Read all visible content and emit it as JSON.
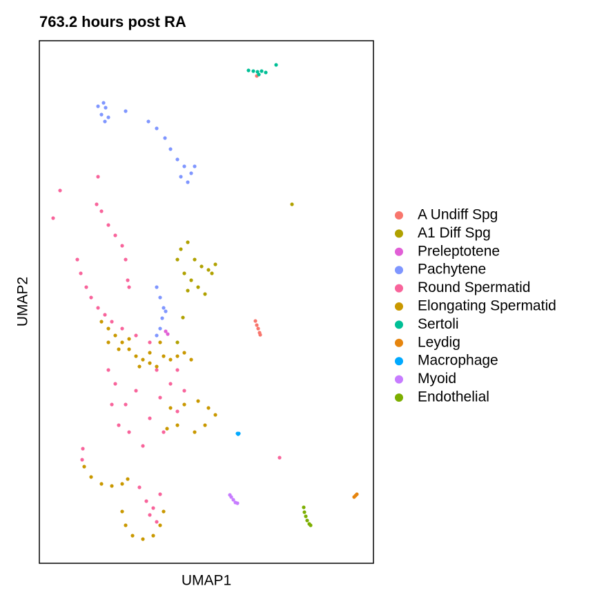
{
  "chart_data": {
    "type": "scatter",
    "title": "763.2 hours post RA",
    "x_label": "UMAP1",
    "y_label": "UMAP2",
    "xlim": [
      0,
      484
    ],
    "ylim": [
      0,
      757
    ],
    "legend": "right",
    "series": [
      {
        "name": "A Undiff Spg",
        "color": "#F8766D",
        "x": [
          313,
          315,
          317,
          319,
          320,
          315
        ],
        "y": [
          351,
          345,
          340,
          334,
          331,
          706
        ]
      },
      {
        "name": "A1 Diff Spg",
        "color": "#B0A100",
        "x": [
          205,
          215,
          225,
          235,
          245,
          255,
          220,
          230,
          240,
          210,
          200,
          250,
          215,
          208,
          200,
          366
        ],
        "y": [
          455,
          465,
          440,
          430,
          425,
          433,
          410,
          400,
          390,
          420,
          440,
          420,
          395,
          356,
          320,
          520
        ]
      },
      {
        "name": "Preleptotene",
        "color": "#E15FD6",
        "x": [
          183,
          186
        ],
        "y": [
          336,
          332
        ]
      },
      {
        "name": "Pachytene",
        "color": "#7F96FF",
        "x": [
          85,
          90,
          95,
          100,
          96,
          93,
          125,
          158,
          170,
          182,
          190,
          200,
          210,
          220,
          225,
          205,
          215,
          170,
          175,
          180,
          178,
          175,
          170,
          183
        ],
        "y": [
          662,
          650,
          640,
          646,
          660,
          667,
          655,
          640,
          630,
          616,
          600,
          585,
          575,
          565,
          575,
          560,
          552,
          400,
          385,
          370,
          355,
          340,
          330,
          365
        ]
      },
      {
        "name": "Round Spermatid",
        "color": "#F8649B",
        "x": [
          30,
          20,
          85,
          83,
          90,
          100,
          110,
          120,
          125,
          128,
          130,
          55,
          60,
          68,
          75,
          85,
          95,
          105,
          120,
          140,
          160,
          100,
          110,
          105,
          115,
          130,
          150,
          160,
          175,
          190,
          200,
          170,
          140,
          125,
          180,
          200,
          210,
          145,
          155,
          165,
          170,
          175,
          160,
          63,
          62,
          348
        ],
        "y": [
          540,
          500,
          560,
          520,
          510,
          490,
          475,
          460,
          440,
          410,
          400,
          440,
          420,
          400,
          385,
          370,
          360,
          350,
          340,
          330,
          320,
          280,
          260,
          230,
          200,
          190,
          170,
          210,
          240,
          260,
          280,
          280,
          250,
          230,
          190,
          220,
          250,
          110,
          90,
          80,
          60,
          100,
          70,
          166,
          150,
          153
        ]
      },
      {
        "name": "Elongating Spermatid",
        "color": "#C99800",
        "x": [
          90,
          100,
          110,
          120,
          130,
          140,
          150,
          160,
          170,
          180,
          190,
          200,
          210,
          220,
          100,
          115,
          130,
          145,
          160,
          175,
          190,
          210,
          230,
          245,
          255,
          240,
          225,
          200,
          185,
          65,
          75,
          90,
          105,
          120,
          128,
          120,
          125,
          135,
          150,
          165,
          175,
          180
        ],
        "y": [
          350,
          340,
          330,
          320,
          310,
          300,
          295,
          290,
          285,
          300,
          295,
          300,
          305,
          295,
          320,
          310,
          325,
          285,
          305,
          320,
          225,
          230,
          235,
          225,
          215,
          200,
          190,
          200,
          195,
          140,
          125,
          115,
          112,
          115,
          122,
          75,
          55,
          40,
          35,
          40,
          55,
          75
        ]
      },
      {
        "name": "Sertoli",
        "color": "#00BF96",
        "x": [
          303,
          310,
          316,
          322,
          328,
          318,
          343
        ],
        "y": [
          714,
          713,
          712,
          713,
          711,
          708,
          722
        ]
      },
      {
        "name": "Leydig",
        "color": "#E6850E",
        "x": [
          458,
          460,
          456
        ],
        "y": [
          98,
          100,
          96
        ]
      },
      {
        "name": "Macrophage",
        "color": "#00A9FF",
        "x": [
          287,
          289,
          288
        ],
        "y": [
          188,
          188,
          187
        ]
      },
      {
        "name": "Myoid",
        "color": "#C77CFF",
        "x": [
          278,
          281,
          284,
          287,
          276
        ],
        "y": [
          96,
          92,
          88,
          87,
          99
        ]
      },
      {
        "name": "Endothelial",
        "color": "#7CAE00",
        "x": [
          383,
          384,
          386,
          388,
          391,
          393
        ],
        "y": [
          81,
          74,
          68,
          62,
          57,
          55
        ]
      }
    ]
  }
}
